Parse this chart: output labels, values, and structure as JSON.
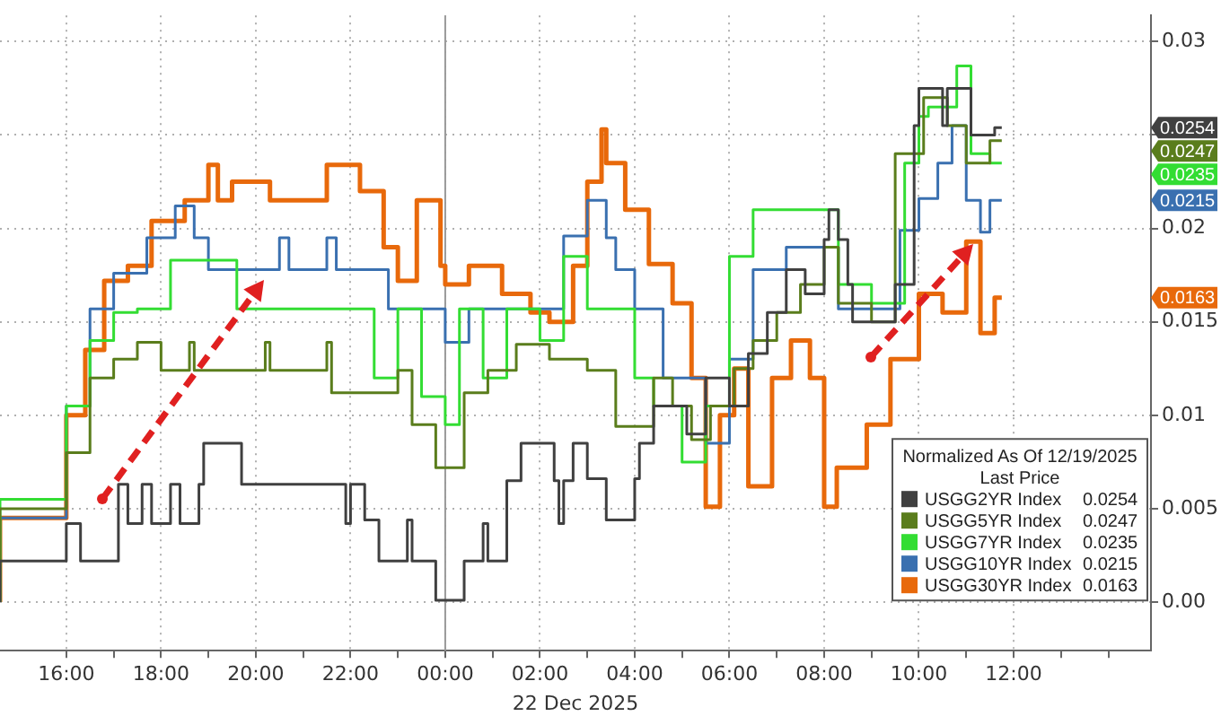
{
  "chart_data": {
    "type": "step",
    "xlabel": "22 Dec 2025",
    "legend_title": "Normalized As Of 12/19/2025\nLast Price",
    "xlim": [
      "2025-12-21T14:36",
      "2025-12-22T14:54"
    ],
    "ylim": [
      -0.0026,
      0.0314
    ],
    "xticks": [
      {
        "value": "2025-12-21T16:00",
        "label": "16:00"
      },
      {
        "value": "2025-12-21T17:00",
        "label": null
      },
      {
        "value": "2025-12-21T18:00",
        "label": "18:00"
      },
      {
        "value": "2025-12-21T19:00",
        "label": null
      },
      {
        "value": "2025-12-21T20:00",
        "label": "20:00"
      },
      {
        "value": "2025-12-21T21:00",
        "label": null
      },
      {
        "value": "2025-12-21T22:00",
        "label": "22:00"
      },
      {
        "value": "2025-12-21T23:00",
        "label": null
      },
      {
        "value": "2025-12-22T00:00",
        "label": "00:00"
      },
      {
        "value": "2025-12-22T01:00",
        "label": null
      },
      {
        "value": "2025-12-22T02:00",
        "label": "02:00"
      },
      {
        "value": "2025-12-22T03:00",
        "label": null
      },
      {
        "value": "2025-12-22T04:00",
        "label": "04:00"
      },
      {
        "value": "2025-12-22T05:00",
        "label": null
      },
      {
        "value": "2025-12-22T06:00",
        "label": "06:00"
      },
      {
        "value": "2025-12-22T07:00",
        "label": null
      },
      {
        "value": "2025-12-22T08:00",
        "label": "08:00"
      },
      {
        "value": "2025-12-22T09:00",
        "label": null
      },
      {
        "value": "2025-12-22T10:00",
        "label": "10:00"
      },
      {
        "value": "2025-12-22T11:00",
        "label": null
      },
      {
        "value": "2025-12-22T12:00",
        "label": "12:00"
      },
      {
        "value": "2025-12-22T13:00",
        "label": null
      },
      {
        "value": "2025-12-22T14:00",
        "label": null
      }
    ],
    "yticks": [
      {
        "value": 0,
        "label": "0.00"
      },
      0.005,
      0.01,
      0.015,
      0.02,
      {
        "value": 0.025,
        "label": null
      },
      0.03
    ],
    "annotations": [
      "0.0254",
      "0.0247",
      "0.0235",
      "0.0215",
      "0.0163"
    ],
    "grid": true,
    "legend": "bottom right",
    "line_style": "solid",
    "marker": "none",
    "ref_lines": [
      {
        "axis": "x",
        "value": "2025-12-22T00:00",
        "color": "#999999"
      }
    ],
    "series": [
      {
        "name": "USGG2YR Index 0.0254",
        "color": "#404040",
        "x": [
          "2025-12-21T14:36",
          "2025-12-21T16:00",
          "2025-12-21T16:18",
          "2025-12-21T16:30",
          "2025-12-21T17:06",
          "2025-12-21T17:18",
          "2025-12-21T17:36",
          "2025-12-21T17:48",
          "2025-12-21T18:12",
          "2025-12-21T18:24",
          "2025-12-21T18:48",
          "2025-12-21T18:54",
          "2025-12-21T19:42",
          "2025-12-21T19:45",
          "2025-12-21T21:54",
          "2025-12-21T22:00",
          "2025-12-21T22:18",
          "2025-12-21T22:36",
          "2025-12-21T23:12",
          "2025-12-21T23:18",
          "2025-12-21T23:48",
          "2025-12-22T00:24",
          "2025-12-22T00:48",
          "2025-12-22T00:54",
          "2025-12-22T01:18",
          "2025-12-22T01:36",
          "2025-12-22T02:18",
          "2025-12-22T02:24",
          "2025-12-22T02:30",
          "2025-12-22T02:42",
          "2025-12-22T03:00",
          "2025-12-22T03:24",
          "2025-12-22T04:00",
          "2025-12-22T04:06",
          "2025-12-22T04:24",
          "2025-12-22T05:06",
          "2025-12-22T05:30",
          "2025-12-22T06:00",
          "2025-12-22T06:24",
          "2025-12-22T06:48",
          "2025-12-22T07:12",
          "2025-12-22T07:36",
          "2025-12-22T08:00",
          "2025-12-22T08:06",
          "2025-12-22T08:18",
          "2025-12-22T08:30",
          "2025-12-22T08:36",
          "2025-12-22T09:30",
          "2025-12-22T09:54",
          "2025-12-22T10:00",
          "2025-12-22T10:30",
          "2025-12-22T10:36",
          "2025-12-22T11:06",
          "2025-12-22T11:36",
          "2025-12-22T11:45"
        ],
        "values": [
          0,
          0.0022,
          0.0042,
          0.0022,
          0.0022,
          0.0063,
          0.0042,
          0.0063,
          0.0042,
          0.0063,
          0.0042,
          0.0063,
          0.0085,
          0.0063,
          0.0063,
          0.0042,
          0.0063,
          0.0044,
          0.0022,
          0.0044,
          0.0022,
          0.0001,
          0.0022,
          0.0042,
          0.0022,
          0.0065,
          0.0085,
          0.0065,
          0.0042,
          0.0065,
          0.0085,
          0.0066,
          0.0044,
          0.0066,
          0.0085,
          0.0105,
          0.009,
          0.012,
          0.0105,
          0.0133,
          0.0155,
          0.0178,
          0.0165,
          0.0194,
          0.021,
          0.0194,
          0.017,
          0.015,
          0.017,
          0.0255,
          0.0275,
          0.0255,
          0.0275,
          0.025,
          0.0254
        ]
      },
      {
        "name": "USGG5YR Index 0.0247",
        "color": "#5a7d1c",
        "x": [
          "2025-12-21T14:36",
          "2025-12-21T16:00",
          "2025-12-21T16:30",
          "2025-12-21T17:00",
          "2025-12-21T17:30",
          "2025-12-21T18:00",
          "2025-12-21T18:36",
          "2025-12-21T18:42",
          "2025-12-21T20:12",
          "2025-12-21T20:18",
          "2025-12-21T21:30",
          "2025-12-21T21:36",
          "2025-12-21T23:00",
          "2025-12-21T23:18",
          "2025-12-21T23:48",
          "2025-12-22T00:24",
          "2025-12-22T00:54",
          "2025-12-22T01:30",
          "2025-12-22T02:12",
          "2025-12-22T03:00",
          "2025-12-22T03:36",
          "2025-12-22T04:24",
          "2025-12-22T04:48",
          "2025-12-22T05:12",
          "2025-12-22T05:36",
          "2025-12-22T06:06",
          "2025-12-22T06:30",
          "2025-12-22T07:00",
          "2025-12-22T07:30",
          "2025-12-22T08:00",
          "2025-12-22T08:18",
          "2025-12-22T09:00",
          "2025-12-22T09:30",
          "2025-12-22T10:06",
          "2025-12-22T10:36",
          "2025-12-22T11:00",
          "2025-12-22T11:30",
          "2025-12-22T11:45"
        ],
        "values": [
          0,
          0.005,
          0.008,
          0.012,
          0.013,
          0.0139,
          0.0124,
          0.0139,
          0.0124,
          0.0139,
          0.0124,
          0.0139,
          0.0112,
          0.0124,
          0.0095,
          0.0072,
          0.0112,
          0.0124,
          0.0138,
          0.013,
          0.0124,
          0.0094,
          0.012,
          0.0105,
          0.0087,
          0.0105,
          0.0125,
          0.014,
          0.0155,
          0.017,
          0.019,
          0.016,
          0.015,
          0.024,
          0.027,
          0.0255,
          0.0235,
          0.0247
        ]
      },
      {
        "name": "USGG7YR Index 0.0235",
        "color": "#33dd33",
        "x": [
          "2025-12-21T14:36",
          "2025-12-21T16:00",
          "2025-12-21T16:30",
          "2025-12-21T17:00",
          "2025-12-21T17:30",
          "2025-12-21T18:12",
          "2025-12-21T19:36",
          "2025-12-21T19:48",
          "2025-12-21T20:00",
          "2025-12-21T22:30",
          "2025-12-21T23:00",
          "2025-12-21T23:30",
          "2025-12-22T00:00",
          "2025-12-22T00:18",
          "2025-12-22T00:48",
          "2025-12-22T01:18",
          "2025-12-22T02:00",
          "2025-12-22T02:30",
          "2025-12-22T03:00",
          "2025-12-22T03:30",
          "2025-12-22T04:00",
          "2025-12-22T04:24",
          "2025-12-22T05:00",
          "2025-12-22T05:30",
          "2025-12-22T06:00",
          "2025-12-22T06:30",
          "2025-12-22T07:12",
          "2025-12-22T08:18",
          "2025-12-22T09:00",
          "2025-12-22T09:42",
          "2025-12-22T10:00",
          "2025-12-22T10:12",
          "2025-12-22T10:48",
          "2025-12-22T11:06",
          "2025-12-22T11:30",
          "2025-12-22T11:45"
        ],
        "values": [
          0,
          0.0055,
          0.0105,
          0.014,
          0.0155,
          0.0157,
          0.0183,
          0.0157,
          0.0157,
          0.0157,
          0.012,
          0.0157,
          0.011,
          0.0095,
          0.0157,
          0.012,
          0.0157,
          0.014,
          0.0185,
          0.0157,
          0.0157,
          0.012,
          0.0105,
          0.0075,
          0.0105,
          0.0185,
          0.021,
          0.021,
          0.017,
          0.016,
          0.0235,
          0.026,
          0.0265,
          0.0287,
          0.024,
          0.0235
        ]
      },
      {
        "name": "USGG10YR Index 0.0215",
        "color": "#3a70b0",
        "x": [
          "2025-12-21T14:36",
          "2025-12-21T16:00",
          "2025-12-21T16:30",
          "2025-12-21T17:00",
          "2025-12-21T17:42",
          "2025-12-21T18:18",
          "2025-12-21T18:42",
          "2025-12-21T19:00",
          "2025-12-21T20:30",
          "2025-12-21T20:42",
          "2025-12-21T21:30",
          "2025-12-21T21:42",
          "2025-12-21T22:48",
          "2025-12-21T23:30",
          "2025-12-22T00:00",
          "2025-12-22T00:30",
          "2025-12-22T01:30",
          "2025-12-22T02:30",
          "2025-12-22T03:00",
          "2025-12-22T03:24",
          "2025-12-22T03:36",
          "2025-12-22T04:00",
          "2025-12-22T04:36",
          "2025-12-22T05:30",
          "2025-12-22T06:00",
          "2025-12-22T06:30",
          "2025-12-22T07:12",
          "2025-12-22T08:18",
          "2025-12-22T09:00",
          "2025-12-22T09:36",
          "2025-12-22T10:00",
          "2025-12-22T10:24",
          "2025-12-22T10:42",
          "2025-12-22T11:00",
          "2025-12-22T11:18",
          "2025-12-22T11:30",
          "2025-12-22T11:45"
        ],
        "values": [
          0,
          0.0045,
          0.0105,
          0.0157,
          0.0176,
          0.0195,
          0.0212,
          0.0195,
          0.0178,
          0.0195,
          0.0178,
          0.0195,
          0.0178,
          0.0157,
          0.0157,
          0.0139,
          0.0157,
          0.0157,
          0.0196,
          0.0215,
          0.0195,
          0.0178,
          0.0157,
          0.012,
          0.0085,
          0.013,
          0.0178,
          0.019,
          0.0157,
          0.0157,
          0.0199,
          0.0216,
          0.0235,
          0.0255,
          0.0215,
          0.0198,
          0.0215
        ]
      },
      {
        "name": "USGG30YR Index 0.0163",
        "color": "#e8690b",
        "x": [
          "2025-12-21T14:36",
          "2025-12-21T16:00",
          "2025-12-21T16:24",
          "2025-12-21T16:48",
          "2025-12-21T17:18",
          "2025-12-21T17:48",
          "2025-12-21T18:30",
          "2025-12-21T19:00",
          "2025-12-21T19:12",
          "2025-12-21T19:30",
          "2025-12-21T20:18",
          "2025-12-21T20:30",
          "2025-12-21T21:30",
          "2025-12-21T22:12",
          "2025-12-21T22:42",
          "2025-12-21T23:00",
          "2025-12-21T23:24",
          "2025-12-21T23:54",
          "2025-12-22T00:00",
          "2025-12-22T00:30",
          "2025-12-22T01:12",
          "2025-12-22T01:48",
          "2025-12-22T02:12",
          "2025-12-22T02:42",
          "2025-12-22T03:00",
          "2025-12-22T03:18",
          "2025-12-22T03:24",
          "2025-12-22T03:48",
          "2025-12-22T04:18",
          "2025-12-22T04:48",
          "2025-12-22T05:12",
          "2025-12-22T05:30",
          "2025-12-22T05:48",
          "2025-12-22T06:06",
          "2025-12-22T06:24",
          "2025-12-22T06:54",
          "2025-12-22T07:18",
          "2025-12-22T07:42",
          "2025-12-22T08:00",
          "2025-12-22T08:16",
          "2025-12-22T08:54",
          "2025-12-22T09:24",
          "2025-12-22T10:00",
          "2025-12-22T10:30",
          "2025-12-22T11:00",
          "2025-12-22T11:18",
          "2025-12-22T11:36",
          "2025-12-22T11:45"
        ],
        "values": [
          0,
          0.0045,
          0.01,
          0.0135,
          0.0172,
          0.018,
          0.0204,
          0.0215,
          0.0234,
          0.0215,
          0.0225,
          0.0215,
          0.0215,
          0.0234,
          0.022,
          0.019,
          0.0172,
          0.0215,
          0.018,
          0.017,
          0.018,
          0.0165,
          0.0155,
          0.015,
          0.018,
          0.0225,
          0.0253,
          0.0235,
          0.021,
          0.0181,
          0.016,
          0.012,
          0.0051,
          0.01,
          0.0125,
          0.0062,
          0.012,
          0.014,
          0.012,
          0.0051,
          0.0072,
          0.0095,
          0.013,
          0.0165,
          0.0155,
          0.0193,
          0.0144,
          0.0163
        ]
      }
    ]
  }
}
